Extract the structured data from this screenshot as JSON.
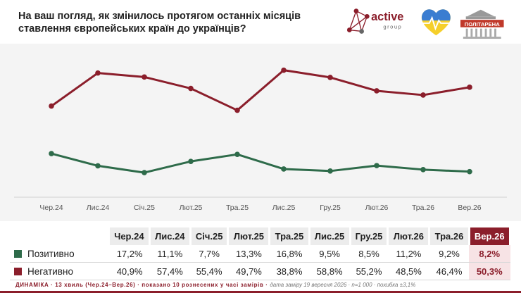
{
  "header": {
    "question": "На ваш погляд, як змінилось протягом останніх місяців ставлення європейських країн до українців?",
    "logos": {
      "active_main": "active",
      "active_sub": "group",
      "politarena": "ПОЛІТАРЕНА"
    }
  },
  "chart_data": {
    "type": "line",
    "categories": [
      "Чер.24",
      "Лис.24",
      "Січ.25",
      "Лют.25",
      "Тра.25",
      "Лис.25",
      "Гру.25",
      "Лют.26",
      "Тра.26",
      "Вер.26"
    ],
    "series": [
      {
        "name": "Позитивно",
        "values": [
          17.2,
          11.1,
          7.7,
          13.3,
          16.8,
          9.5,
          8.5,
          11.2,
          9.2,
          8.2
        ],
        "color": "#2e6b4a"
      },
      {
        "name": "Негативно",
        "values": [
          40.9,
          57.4,
          55.4,
          49.7,
          38.8,
          58.8,
          55.2,
          48.5,
          46.4,
          50.3
        ],
        "color": "#8b1e2b"
      }
    ],
    "ylim": [
      0,
      65
    ],
    "grid": false,
    "title": "",
    "xlabel": "",
    "ylabel": ""
  },
  "table": {
    "headers": [
      "Чер.24",
      "Лис.24",
      "Січ.25",
      "Лют.25",
      "Тра.25",
      "Лис.25",
      "Гру.25",
      "Лют.26",
      "Тра.26",
      "Вер.26"
    ],
    "rows": [
      {
        "label": "Позитивно",
        "color": "#2e6b4a",
        "cells": [
          "17,2%",
          "11,1%",
          "7,7%",
          "13,3%",
          "16,8%",
          "9,5%",
          "8,5%",
          "11,2%",
          "9,2%",
          "8,2%"
        ]
      },
      {
        "label": "Негативно",
        "color": "#8b1e2b",
        "cells": [
          "40,9%",
          "57,4%",
          "55,4%",
          "49,7%",
          "38,8%",
          "58,8%",
          "55,2%",
          "48,5%",
          "46,4%",
          "50,3%"
        ]
      }
    ]
  },
  "footer": {
    "main": "ДИНАМІКА · 13 хвиль (Чер.24–Вер.26) · показано 10 рознесених у часі замірів ·",
    "note": "дата заміру 19 вересня 2026 · n=1 000 · похибка ±3,1%"
  }
}
